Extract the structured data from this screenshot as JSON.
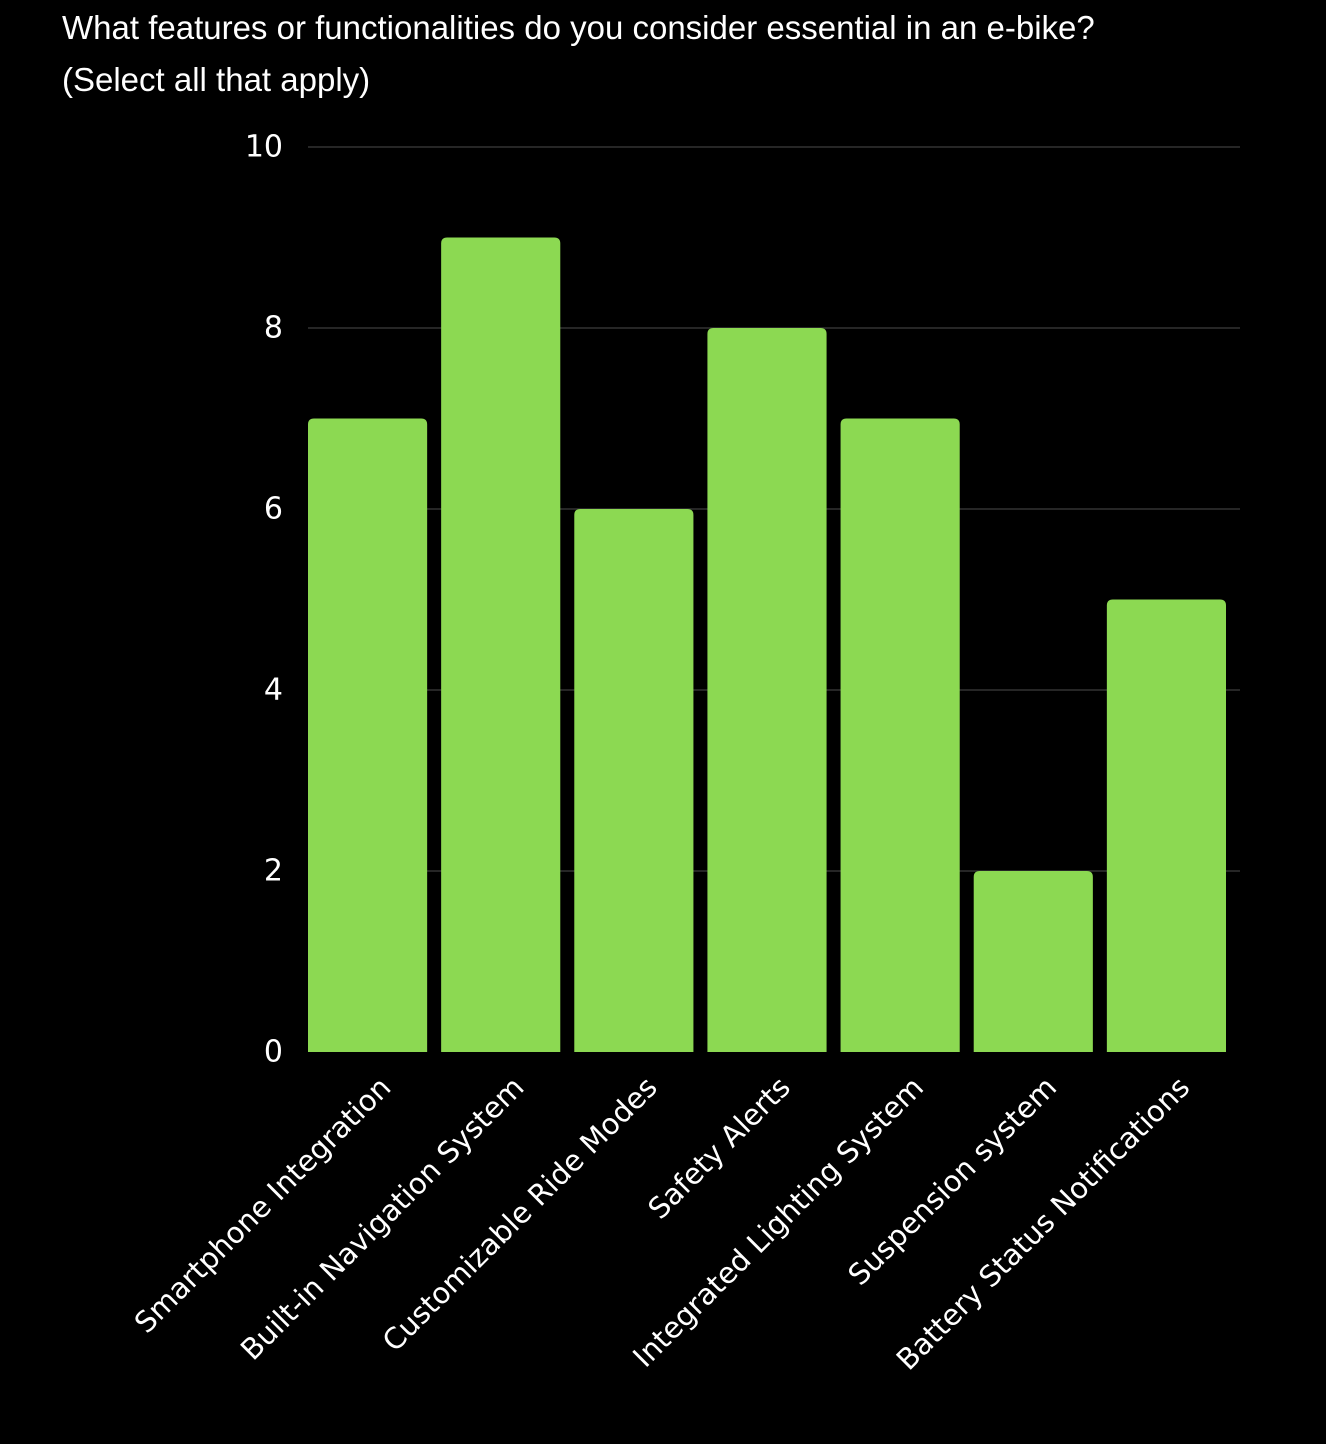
{
  "colors": {
    "background": "#000000",
    "bar": "#8cd952",
    "grid": "#262626",
    "text": "#ffffff"
  },
  "chart_data": {
    "type": "bar",
    "title": "What features or functionalities do you consider essential in an e-bike?",
    "subtitle": "(Select all that apply)",
    "xlabel": "",
    "ylabel": "",
    "categories": [
      "Smartphone Integration",
      "Built-in Navigation System",
      "Customizable Ride Modes",
      "Safety Alerts",
      "Integrated Lighting System",
      "Suspension system",
      "Battery Status Notifications"
    ],
    "values": [
      7,
      9,
      6,
      8,
      7,
      2,
      5
    ],
    "ylim": [
      0,
      10
    ],
    "yticks": [
      0,
      2,
      4,
      6,
      8,
      10
    ],
    "grid": true,
    "legend": "none"
  }
}
